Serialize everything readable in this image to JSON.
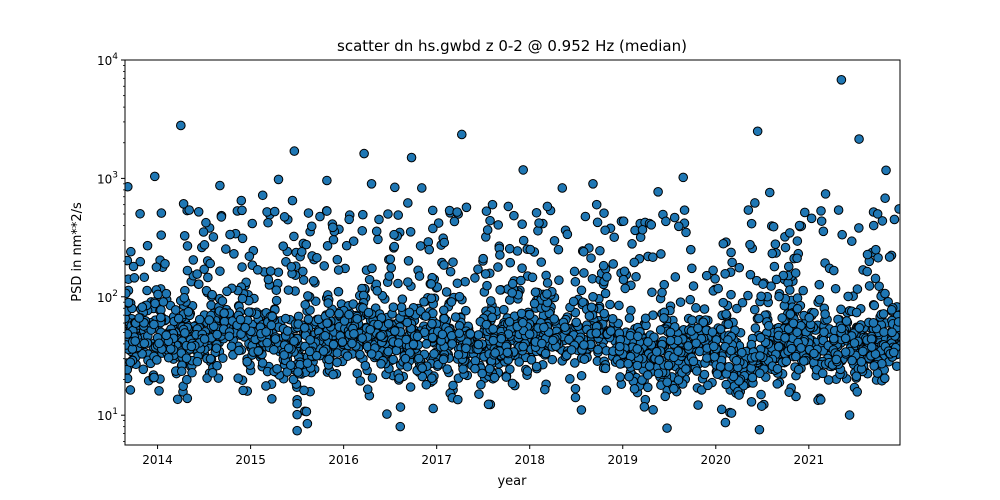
{
  "chart_data": {
    "type": "scatter",
    "title": "scatter dn hs.gwbd z 0-2 @ 0.952 Hz (median)",
    "xlabel": "year",
    "ylabel": "PSD in nm**2/s",
    "yscale": "log",
    "xlim": [
      2013.65,
      2021.98
    ],
    "ylim": [
      5.6,
      10000
    ],
    "x_ticks": [
      {
        "value": 2014,
        "label": "2014"
      },
      {
        "value": 2015,
        "label": "2015"
      },
      {
        "value": 2016,
        "label": "2016"
      },
      {
        "value": 2017,
        "label": "2017"
      },
      {
        "value": 2018,
        "label": "2018"
      },
      {
        "value": 2019,
        "label": "2019"
      },
      {
        "value": 2020,
        "label": "2020"
      },
      {
        "value": 2021,
        "label": "2021"
      }
    ],
    "y_ticks": [
      {
        "value": 10,
        "base": "10",
        "exp": "1"
      },
      {
        "value": 100,
        "base": "10",
        "exp": "2"
      },
      {
        "value": 1000,
        "base": "10",
        "exp": "3"
      },
      {
        "value": 10000,
        "base": "10",
        "exp": "4"
      }
    ],
    "grid": false,
    "marker_color": "#1f77b4",
    "marker_edge": "#000000",
    "baseline_profile": [
      [
        2013.65,
        45
      ],
      [
        2013.8,
        48
      ],
      [
        2014.0,
        52
      ],
      [
        2014.2,
        40
      ],
      [
        2014.4,
        38
      ],
      [
        2014.6,
        45
      ],
      [
        2014.8,
        55
      ],
      [
        2015.0,
        50
      ],
      [
        2015.2,
        42
      ],
      [
        2015.45,
        32
      ],
      [
        2015.6,
        35
      ],
      [
        2015.8,
        45
      ],
      [
        2016.0,
        52
      ],
      [
        2016.2,
        48
      ],
      [
        2016.4,
        38
      ],
      [
        2016.6,
        40
      ],
      [
        2016.8,
        45
      ],
      [
        2017.0,
        45
      ],
      [
        2017.2,
        42
      ],
      [
        2017.4,
        38
      ],
      [
        2017.6,
        40
      ],
      [
        2017.8,
        48
      ],
      [
        2018.0,
        50
      ],
      [
        2018.2,
        48
      ],
      [
        2018.4,
        42
      ],
      [
        2018.6,
        45
      ],
      [
        2018.8,
        55
      ],
      [
        2019.0,
        38
      ],
      [
        2019.2,
        32
      ],
      [
        2019.4,
        30
      ],
      [
        2019.6,
        32
      ],
      [
        2019.8,
        38
      ],
      [
        2020.0,
        35
      ],
      [
        2020.3,
        24
      ],
      [
        2020.5,
        30
      ],
      [
        2020.7,
        38
      ],
      [
        2020.9,
        45
      ],
      [
        2021.1,
        42
      ],
      [
        2021.3,
        32
      ],
      [
        2021.5,
        35
      ],
      [
        2021.7,
        40
      ],
      [
        2021.98,
        45
      ]
    ],
    "outliers": [
      [
        2014.25,
        2800
      ],
      [
        2017.27,
        2350
      ],
      [
        2020.45,
        2500
      ],
      [
        2021.35,
        6800
      ],
      [
        2021.54,
        2150
      ],
      [
        2015.47,
        1700
      ],
      [
        2016.22,
        1620
      ],
      [
        2016.73,
        1500
      ],
      [
        2017.93,
        1180
      ],
      [
        2021.83,
        1170
      ],
      [
        2013.97,
        1040
      ],
      [
        2019.65,
        1020
      ],
      [
        2015.3,
        980
      ],
      [
        2015.82,
        960
      ],
      [
        2013.68,
        850
      ],
      [
        2014.67,
        870
      ],
      [
        2016.55,
        840
      ],
      [
        2016.84,
        830
      ],
      [
        2018.68,
        900
      ],
      [
        2018.35,
        830
      ],
      [
        2019.38,
        770
      ],
      [
        2020.58,
        760
      ],
      [
        2021.18,
        740
      ],
      [
        2015.13,
        720
      ],
      [
        2014.28,
        610
      ],
      [
        2014.34,
        540
      ],
      [
        2014.9,
        650
      ],
      [
        2016.3,
        900
      ],
      [
        2017.32,
        570
      ],
      [
        2017.6,
        600
      ],
      [
        2017.77,
        580
      ],
      [
        2018.19,
        580
      ],
      [
        2018.72,
        600
      ],
      [
        2020.35,
        540
      ],
      [
        2020.42,
        620
      ],
      [
        2021.32,
        540
      ],
      [
        2021.82,
        680
      ],
      [
        2015.45,
        650
      ],
      [
        2015.82,
        530
      ],
      [
        2016.38,
        450
      ],
      [
        2016.69,
        620
      ],
      [
        2017.22,
        520
      ],
      [
        2018.1,
        420
      ],
      [
        2019.1,
        280
      ],
      [
        2019.68,
        350
      ],
      [
        2020.9,
        400
      ],
      [
        2021.03,
        460
      ],
      [
        2021.92,
        450
      ],
      [
        2014.08,
        190
      ],
      [
        2014.6,
        320
      ],
      [
        2015.55,
        240
      ],
      [
        2016.92,
        250
      ],
      [
        2017.5,
        210
      ],
      [
        2018.58,
        240
      ],
      [
        2019.41,
        230
      ],
      [
        2020.63,
        180
      ],
      [
        2021.72,
        250
      ]
    ],
    "low_points": [
      [
        2015.5,
        13.5
      ],
      [
        2015.5,
        12.5
      ],
      [
        2015.5,
        10.1
      ],
      [
        2015.5,
        7.4
      ],
      [
        2014.92,
        16.2
      ],
      [
        2016.72,
        17.3
      ],
      [
        2020.25,
        14.8
      ]
    ]
  }
}
